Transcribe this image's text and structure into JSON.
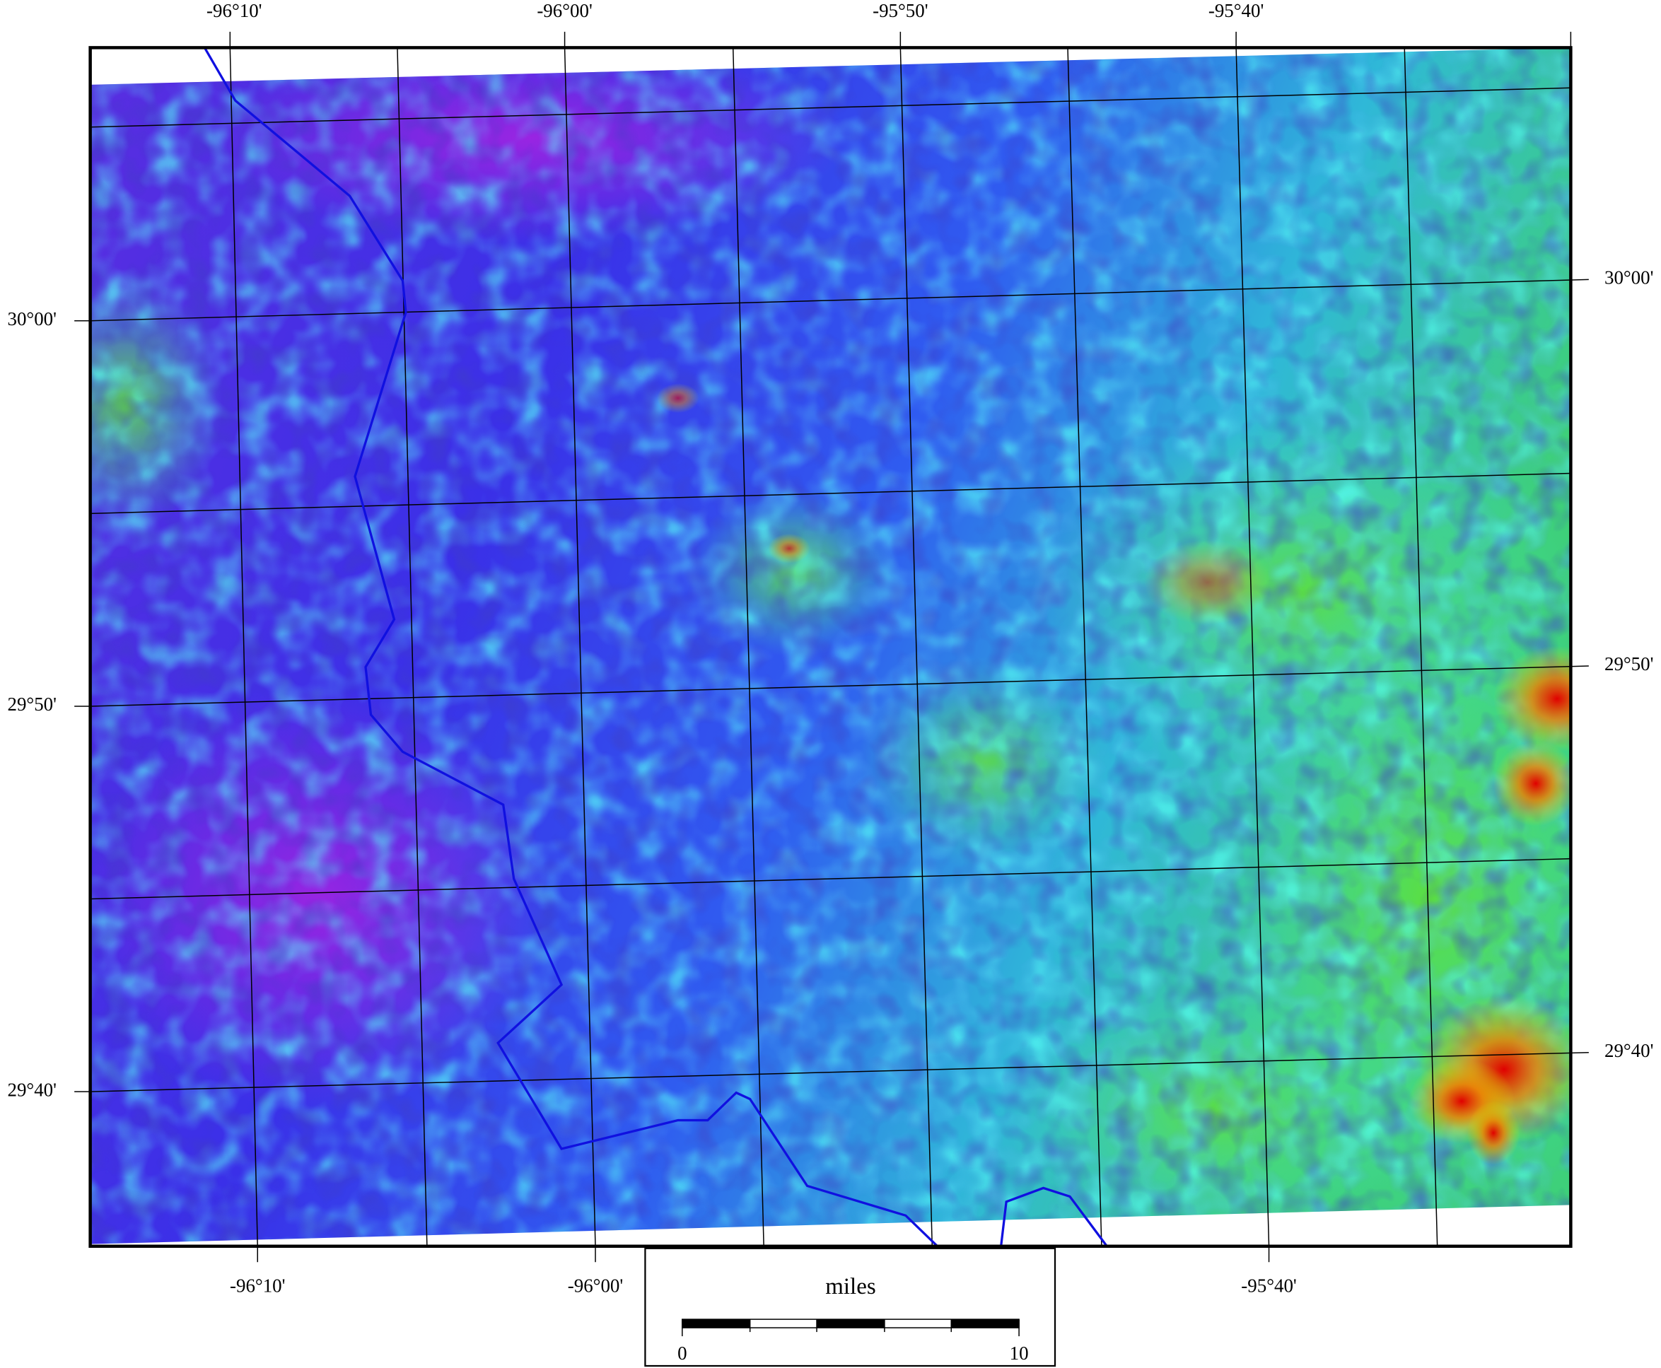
{
  "map": {
    "top_lon_labels": [
      "-96°10'",
      "-96°00'",
      "-95°50'",
      "-95°40'"
    ],
    "bottom_lon_labels": [
      "-96°10'",
      "-96°00'",
      "-95°40'"
    ],
    "left_lat_labels": [
      "30°00'",
      "29°50'",
      "29°40'"
    ],
    "right_lat_labels": [
      "30°00'",
      "29°50'",
      "29°40'"
    ],
    "scale_bar": {
      "unit": "miles",
      "ticks": [
        0,
        10
      ]
    }
  }
}
